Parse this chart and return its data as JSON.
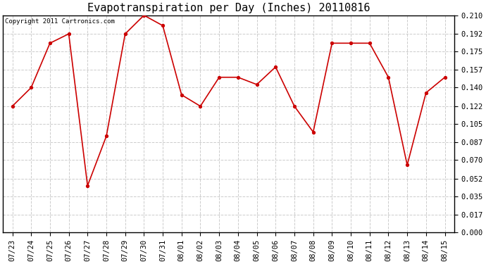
{
  "title": "Evapotranspiration per Day (Inches) 20110816",
  "copyright_text": "Copyright 2011 Cartronics.com",
  "x_labels": [
    "07/23",
    "07/24",
    "07/25",
    "07/26",
    "07/27",
    "07/28",
    "07/29",
    "07/30",
    "07/31",
    "08/01",
    "08/02",
    "08/03",
    "08/04",
    "08/05",
    "08/06",
    "08/07",
    "08/08",
    "08/09",
    "08/10",
    "08/11",
    "08/12",
    "08/13",
    "08/14",
    "08/15"
  ],
  "y_values": [
    0.122,
    0.14,
    0.183,
    0.192,
    0.045,
    0.093,
    0.192,
    0.21,
    0.2,
    0.133,
    0.122,
    0.15,
    0.15,
    0.143,
    0.16,
    0.122,
    0.097,
    0.183,
    0.183,
    0.183,
    0.15,
    0.065,
    0.135,
    0.15
  ],
  "y_ticks": [
    0.0,
    0.017,
    0.035,
    0.052,
    0.07,
    0.087,
    0.105,
    0.122,
    0.14,
    0.157,
    0.175,
    0.192,
    0.21
  ],
  "line_color": "#cc0000",
  "marker": "o",
  "marker_size": 3,
  "background_color": "#ffffff",
  "plot_bg_color": "#ffffff",
  "title_fontsize": 11,
  "tick_fontsize": 7.5,
  "grid_color": "#cccccc",
  "ylim": [
    0.0,
    0.21
  ],
  "border_color": "#000000"
}
